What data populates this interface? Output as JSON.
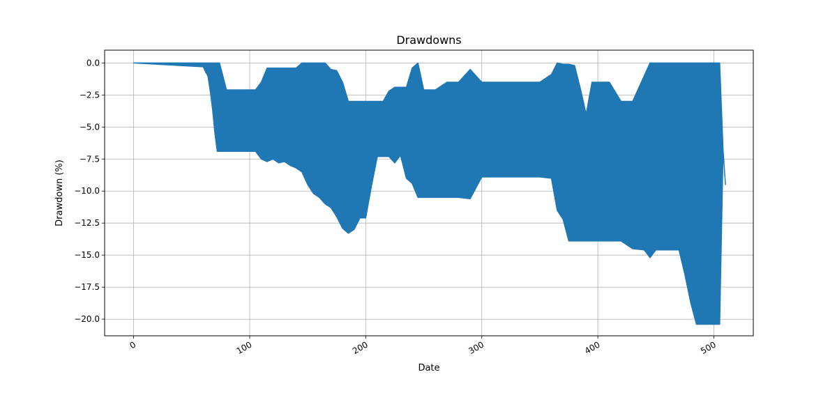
{
  "chart_data": {
    "type": "line",
    "title": "Drawdowns",
    "xlabel": "Date",
    "ylabel": "Drawdown (%)",
    "xlim": [
      -25,
      534
    ],
    "ylim": [
      -21.3,
      1.0
    ],
    "x_ticks": [
      0,
      100,
      200,
      300,
      400,
      500
    ],
    "x_tick_labels": [
      "0",
      "100",
      "200",
      "300",
      "400",
      "500"
    ],
    "y_ticks": [
      0.0,
      -2.5,
      -5.0,
      -7.5,
      -10.0,
      -12.5,
      -15.0,
      -17.5,
      -20.0
    ],
    "y_tick_labels": [
      "0.0",
      "−2.5",
      "−5.0",
      "−7.5",
      "−10.0",
      "−12.5",
      "−15.0",
      "−17.5",
      "−20.0"
    ],
    "grid": true,
    "series": [
      {
        "color": "#1f77b4",
        "x": [
          0,
          60,
          62,
          64,
          66,
          68,
          70,
          72,
          74,
          80,
          90,
          100,
          105,
          110,
          115,
          120,
          125,
          130,
          135,
          140,
          145,
          150,
          155,
          160,
          165,
          170,
          175,
          180,
          185,
          190,
          195,
          200,
          205,
          210,
          215,
          220,
          225,
          230,
          235,
          240,
          245,
          250,
          255,
          260,
          270,
          280,
          290,
          300,
          310,
          320,
          330,
          340,
          350,
          360,
          365,
          370,
          375,
          380,
          385,
          390,
          395,
          400,
          410,
          420,
          430,
          440,
          445,
          450,
          460,
          470,
          475,
          480,
          485,
          490,
          495,
          500,
          505,
          508,
          510
        ],
        "low": [
          0.0,
          -0.3,
          -0.7,
          -1.0,
          -2.2,
          -3.6,
          -5.5,
          -6.9,
          -6.9,
          -6.9,
          -6.9,
          -6.9,
          -6.9,
          -7.5,
          -7.7,
          -7.5,
          -7.8,
          -7.7,
          -8.0,
          -8.2,
          -8.5,
          -9.5,
          -10.2,
          -10.5,
          -11.0,
          -11.3,
          -12.0,
          -12.9,
          -13.3,
          -13.0,
          -12.1,
          -12.1,
          -9.6,
          -7.3,
          -7.3,
          -7.3,
          -7.8,
          -7.2,
          -9.0,
          -9.4,
          -10.5,
          -10.5,
          -10.5,
          -10.5,
          -10.5,
          -10.5,
          -10.6,
          -8.9,
          -8.9,
          -8.9,
          -8.9,
          -8.9,
          -8.9,
          -9.0,
          -11.5,
          -12.2,
          -13.9,
          -13.9,
          -13.9,
          -13.9,
          -13.9,
          -13.9,
          -13.9,
          -13.9,
          -14.5,
          -14.6,
          -15.2,
          -14.6,
          -14.6,
          -14.6,
          -16.5,
          -18.7,
          -20.4,
          -20.4,
          -20.4,
          -20.4,
          -20.4,
          -6.8,
          -9.5
        ],
        "high": [
          0.0,
          0.0,
          0.0,
          0.0,
          0.0,
          0.0,
          0.0,
          0.0,
          0.0,
          -2.1,
          -2.1,
          -2.1,
          -2.1,
          -1.5,
          -0.4,
          -0.4,
          -0.4,
          -0.4,
          -0.4,
          -0.4,
          0.0,
          0.0,
          0.0,
          0.0,
          0.0,
          -0.5,
          -0.6,
          -1.5,
          -3.0,
          -3.0,
          -3.0,
          -3.0,
          -3.0,
          -3.0,
          -3.0,
          -2.2,
          -1.9,
          -1.9,
          -1.9,
          -0.4,
          0.0,
          -2.1,
          -2.1,
          -2.1,
          -1.5,
          -1.5,
          -0.5,
          -1.5,
          -1.5,
          -1.5,
          -1.5,
          -1.5,
          -1.5,
          -0.9,
          0.0,
          -0.1,
          -0.1,
          -0.2,
          -2.0,
          -4.0,
          -1.5,
          -1.5,
          -1.5,
          -3.0,
          -3.0,
          -1.0,
          0.0,
          0.0,
          0.0,
          0.0,
          0.0,
          0.0,
          0.0,
          0.0,
          0.0,
          0.0,
          0.0,
          -6.8,
          -9.5
        ]
      }
    ]
  }
}
